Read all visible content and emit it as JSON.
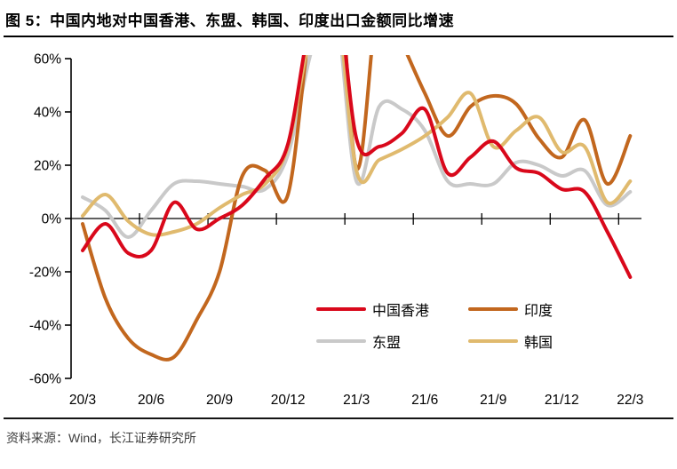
{
  "header": {
    "title": "图 5：中国内地对中国香港、东盟、韩国、印度出口金额同比增速"
  },
  "source": {
    "text": "资料来源：Wind，长江证券研究所"
  },
  "legend": {
    "items": [
      {
        "key": "hongkong",
        "label": "中国香港",
        "color": "#d9081b"
      },
      {
        "key": "india",
        "label": "印度",
        "color": "#c2671e"
      },
      {
        "key": "asean",
        "label": "东盟",
        "color": "#c9c9c9"
      },
      {
        "key": "korea",
        "label": "韩国",
        "color": "#e0ba6e"
      }
    ]
  },
  "chart_data": {
    "type": "line",
    "x": [
      "20/3",
      "20/4",
      "20/5",
      "20/6",
      "20/7",
      "20/8",
      "20/9",
      "20/10",
      "20/11",
      "20/12",
      "21/1",
      "21/2",
      "21/3",
      "21/4",
      "21/5",
      "21/6",
      "21/7",
      "21/8",
      "21/9",
      "21/10",
      "21/11",
      "21/12",
      "22/1",
      "22/2",
      "22/3"
    ],
    "x_tick_labels": [
      "20/3",
      "20/6",
      "20/9",
      "20/12",
      "21/3",
      "21/6",
      "21/9",
      "21/12",
      "22/3"
    ],
    "y_tick_labels": [
      "60%",
      "40%",
      "20%",
      "0%",
      "-20%",
      "-40%",
      "-60%"
    ],
    "y_ticks": [
      60,
      40,
      20,
      0,
      -20,
      -40,
      -60
    ],
    "ylim": [
      -60,
      60
    ],
    "unit": "%",
    "clipped_at": 60,
    "series": [
      {
        "name": "中国香港",
        "key": "hongkong",
        "color": "#d9081b",
        "values": [
          -12,
          -2,
          -13,
          -12,
          6,
          -4,
          0,
          5,
          15,
          28,
          75,
          95,
          30,
          27,
          32,
          41,
          17,
          23,
          29,
          19,
          17,
          11,
          10,
          -5,
          -22
        ]
      },
      {
        "name": "印度",
        "key": "india",
        "color": "#c2671e",
        "values": [
          -2,
          -30,
          -45,
          -51,
          -52,
          -38,
          -20,
          16,
          18,
          9,
          75,
          120,
          19,
          85,
          66,
          47,
          31,
          42,
          46,
          43,
          30,
          23,
          37,
          13,
          31
        ]
      },
      {
        "name": "东盟",
        "key": "asean",
        "color": "#c9c9c9",
        "values": [
          8,
          3,
          -7,
          3,
          13,
          14,
          13,
          12,
          11,
          24,
          62,
          85,
          14,
          42,
          41,
          33,
          14,
          13,
          13,
          21,
          20,
          16,
          18,
          5,
          10
        ]
      },
      {
        "name": "韩国",
        "key": "korea",
        "color": "#e0ba6e",
        "values": [
          1,
          9,
          -1,
          -6,
          -5,
          -2,
          4,
          9,
          13,
          27,
          70,
          90,
          18,
          22,
          26,
          31,
          38,
          47,
          27,
          33,
          38,
          25,
          27,
          6,
          14
        ]
      }
    ]
  }
}
